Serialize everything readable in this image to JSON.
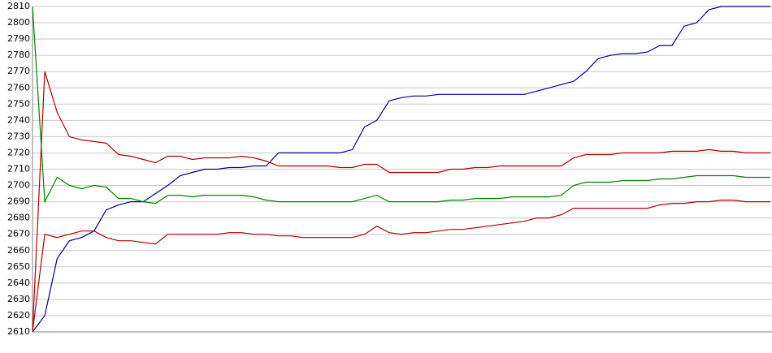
{
  "chart_data": {
    "type": "line",
    "grid": true,
    "ylim": [
      2610,
      2810
    ],
    "yticks": [
      2610,
      2620,
      2630,
      2640,
      2650,
      2660,
      2670,
      2680,
      2690,
      2700,
      2710,
      2720,
      2730,
      2740,
      2750,
      2760,
      2770,
      2780,
      2790,
      2800,
      2810
    ],
    "series": [
      {
        "color": "#00008b",
        "values": [
          2610,
          2620,
          2655,
          2666,
          2668,
          2672,
          2685,
          2688,
          2690,
          2690,
          2695,
          2700,
          2706,
          2708,
          2710,
          2710,
          2711,
          2711,
          2712,
          2712,
          2720,
          2720,
          2720,
          2720,
          2720,
          2720,
          2722,
          2736,
          2740,
          2752,
          2754,
          2755,
          2755,
          2756,
          2756,
          2756,
          2756,
          2756,
          2756,
          2756,
          2756,
          2758,
          2760,
          2762,
          2764,
          2770,
          2778,
          2780,
          2781,
          2781,
          2782,
          2786,
          2786,
          2798,
          2800,
          2808,
          2810,
          2810,
          2810,
          2810,
          2810
        ]
      },
      {
        "color": "#b00000",
        "values": [
          2610,
          2770,
          2745,
          2730,
          2728,
          2727,
          2726,
          2719,
          2718,
          2716,
          2714,
          2718,
          2718,
          2716,
          2717,
          2717,
          2717,
          2718,
          2717,
          2715,
          2712,
          2712,
          2712,
          2712,
          2712,
          2711,
          2711,
          2713,
          2713,
          2708,
          2708,
          2708,
          2708,
          2708,
          2710,
          2710,
          2711,
          2711,
          2712,
          2712,
          2712,
          2712,
          2712,
          2712,
          2717,
          2719,
          2719,
          2719,
          2720,
          2720,
          2720,
          2720,
          2721,
          2721,
          2721,
          2722,
          2721,
          2721,
          2720,
          2720,
          2720
        ]
      },
      {
        "color": "#008000",
        "values": [
          2810,
          2690,
          2705,
          2700,
          2698,
          2700,
          2699,
          2692,
          2692,
          2690,
          2689,
          2694,
          2694,
          2693,
          2694,
          2694,
          2694,
          2694,
          2693,
          2691,
          2690,
          2690,
          2690,
          2690,
          2690,
          2690,
          2690,
          2692,
          2694,
          2690,
          2690,
          2690,
          2690,
          2690,
          2691,
          2691,
          2692,
          2692,
          2692,
          2693,
          2693,
          2693,
          2693,
          2694,
          2700,
          2702,
          2702,
          2702,
          2703,
          2703,
          2703,
          2704,
          2704,
          2705,
          2706,
          2706,
          2706,
          2706,
          2705,
          2705,
          2705
        ]
      },
      {
        "color": "#b00000",
        "values": [
          2610,
          2670,
          2668,
          2670,
          2672,
          2672,
          2668,
          2666,
          2666,
          2665,
          2664,
          2670,
          2670,
          2670,
          2670,
          2670,
          2671,
          2671,
          2670,
          2670,
          2669,
          2669,
          2668,
          2668,
          2668,
          2668,
          2668,
          2670,
          2675,
          2671,
          2670,
          2671,
          2671,
          2672,
          2673,
          2673,
          2674,
          2675,
          2676,
          2677,
          2678,
          2680,
          2680,
          2682,
          2686,
          2686,
          2686,
          2686,
          2686,
          2686,
          2686,
          2688,
          2689,
          2689,
          2690,
          2690,
          2691,
          2691,
          2690,
          2690,
          2690
        ]
      }
    ]
  }
}
